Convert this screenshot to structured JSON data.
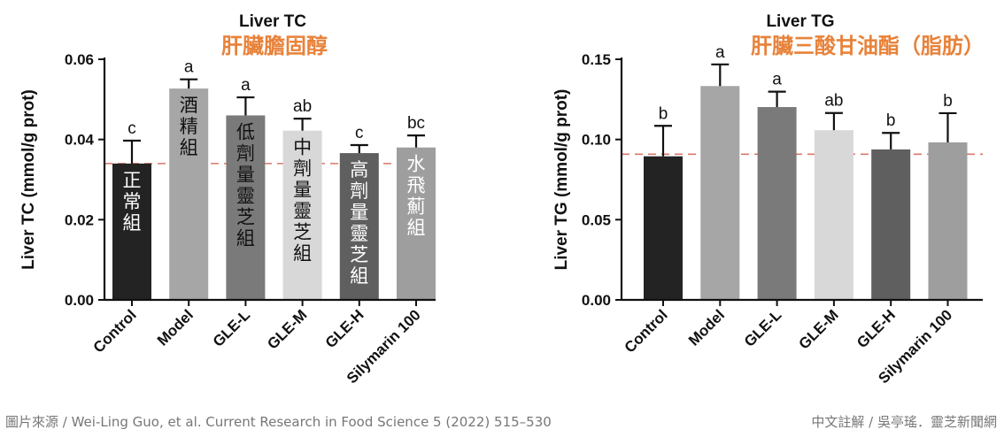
{
  "chart_data": [
    {
      "type": "bar",
      "title": "Liver TC",
      "subtitle": "肝臟膽固醇",
      "ylabel": "Liver TC (mmol/g prot)",
      "xlabel": "",
      "ylim": [
        0,
        0.06
      ],
      "yticks": [
        "0.00",
        "0.02",
        "0.04",
        "0.06"
      ],
      "ytick_values": [
        0,
        0.02,
        0.04,
        0.06
      ],
      "categories": [
        "Control",
        "Model",
        "GLE-L",
        "GLE-M",
        "GLE-H",
        "Silymarin 100"
      ],
      "values": [
        0.034,
        0.0527,
        0.046,
        0.0422,
        0.0366,
        0.038
      ],
      "errors": [
        0.0057,
        0.0023,
        0.0045,
        0.003,
        0.002,
        0.003
      ],
      "significance": [
        "c",
        "a",
        "a",
        "ab",
        "c",
        "bc"
      ],
      "bar_annotations": [
        "正常組",
        "酒精組",
        "低劑量靈芝組",
        "中劑量靈芝組",
        "高劑量靈芝組",
        "水飛薊組"
      ],
      "bar_colors": [
        "#232323",
        "#a6a6a6",
        "#7a7a7a",
        "#d8d8d8",
        "#5f5f5f",
        "#9e9e9e"
      ],
      "annotation_colors": [
        "#ffffff",
        "#111111",
        "#111111",
        "#111111",
        "#ffffff",
        "#ffffff"
      ],
      "reference_line": 0.034,
      "reference_line_color": "#d9786a",
      "title_color": "#111111",
      "subtitle_color": "#e8823a",
      "grid": false
    },
    {
      "type": "bar",
      "title": "Liver TG",
      "subtitle": "肝臟三酸甘油酯（脂肪）",
      "ylabel": "Liver TG (mmol/g prot)",
      "xlabel": "",
      "ylim": [
        0,
        0.15
      ],
      "yticks": [
        "0.00",
        "0.05",
        "0.10",
        "0.15"
      ],
      "ytick_values": [
        0,
        0.05,
        0.1,
        0.15
      ],
      "categories": [
        "Control",
        "Model",
        "GLE-L",
        "GLE-M",
        "GLE-H",
        "Silymarin 100"
      ],
      "values": [
        0.0895,
        0.1333,
        0.1202,
        0.1058,
        0.0938,
        0.0982
      ],
      "errors": [
        0.019,
        0.0135,
        0.0096,
        0.0107,
        0.0103,
        0.0182
      ],
      "significance": [
        "b",
        "a",
        "a",
        "ab",
        "b",
        "b"
      ],
      "bar_colors": [
        "#232323",
        "#a6a6a6",
        "#7a7a7a",
        "#d8d8d8",
        "#5f5f5f",
        "#9e9e9e"
      ],
      "reference_line": 0.0908,
      "reference_line_color": "#d9786a",
      "title_color": "#111111",
      "subtitle_color": "#e8823a",
      "grid": false
    }
  ],
  "captions": {
    "source": "圖片來源 / Wei-Ling Guo, et al. Current Research in Food Science 5 (2022) 515–530",
    "credit": "中文註解 / 吳亭瑤．靈芝新聞網"
  }
}
